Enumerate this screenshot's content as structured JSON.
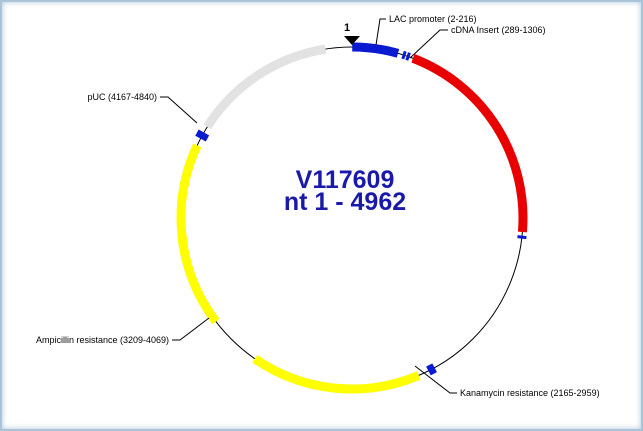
{
  "plasmid": {
    "name": "V117609",
    "range_label": "nt 1 - 4962",
    "start_marker": "1",
    "total_length": 4962
  },
  "features": [
    {
      "id": "lac",
      "label": "LAC promoter (2-216)",
      "start": 2,
      "end": 216,
      "color": "#0a1ad0"
    },
    {
      "id": "cdna",
      "label": "cDNA Insert (289-1306)",
      "start": 289,
      "end": 1306,
      "color": "#e80000"
    },
    {
      "id": "kan",
      "label": "Kanamycin resistance (2165-2959)",
      "start": 2165,
      "end": 2959,
      "color": "#ffff00"
    },
    {
      "id": "amp",
      "label": "Ampicillin resistance (3209-4069)",
      "start": 3209,
      "end": 4069,
      "color": "#ffff00"
    },
    {
      "id": "puc",
      "label": "pUC (4167-4840)",
      "start": 4167,
      "end": 4840,
      "color": "#e2e2e2"
    }
  ],
  "colors": {
    "backbone": "#000000",
    "marker": "#0a1ad0",
    "title": "#1a1aa8",
    "frame_border": "#a9c4d8"
  }
}
